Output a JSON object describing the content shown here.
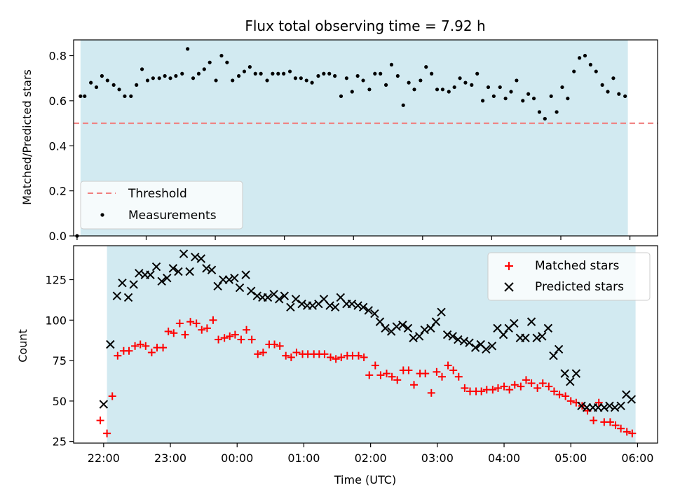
{
  "figure": {
    "title": "Flux total observing time = 7.92 h"
  },
  "chart_data": [
    {
      "type": "scatter",
      "ylabel": "Matched/Predicted stars",
      "xlim": [
        -0.05,
        8.4
      ],
      "ylim": [
        0.0,
        0.87
      ],
      "yticks": [
        0.0,
        0.2,
        0.4,
        0.6,
        0.8
      ],
      "ytick_labels": [
        "0.0",
        "0.2",
        "0.4",
        "0.6",
        "0.8"
      ],
      "xticks": [
        0,
        1,
        2,
        3,
        4,
        5,
        6,
        7,
        8
      ],
      "grid": false,
      "legend_position": "lower-left",
      "observing_window": [
        0.05,
        7.97
      ],
      "threshold": {
        "name": "Threshold",
        "value": 0.5,
        "color": "#f08080",
        "style": "dashed"
      },
      "series": [
        {
          "name": "Measurements",
          "marker": "dot",
          "color": "#000000",
          "x": [
            0.0,
            0.05,
            0.11,
            0.2,
            0.28,
            0.36,
            0.44,
            0.53,
            0.61,
            0.69,
            0.78,
            0.86,
            0.94,
            1.02,
            1.1,
            1.19,
            1.27,
            1.35,
            1.43,
            1.52,
            1.6,
            1.68,
            1.76,
            1.84,
            1.92,
            2.01,
            2.09,
            2.17,
            2.25,
            2.34,
            2.42,
            2.5,
            2.58,
            2.66,
            2.75,
            2.83,
            2.91,
            2.99,
            3.08,
            3.16,
            3.24,
            3.32,
            3.4,
            3.49,
            3.57,
            3.65,
            3.73,
            3.82,
            3.9,
            3.98,
            4.06,
            4.14,
            4.23,
            4.31,
            4.39,
            4.47,
            4.55,
            4.64,
            4.72,
            4.8,
            4.88,
            4.97,
            5.05,
            5.13,
            5.21,
            5.29,
            5.38,
            5.46,
            5.54,
            5.62,
            5.71,
            5.79,
            5.87,
            5.95,
            6.03,
            6.12,
            6.2,
            6.28,
            6.36,
            6.45,
            6.53,
            6.61,
            6.69,
            6.77,
            6.86,
            6.94,
            7.02,
            7.1,
            7.19,
            7.27,
            7.35,
            7.43,
            7.51,
            7.6,
            7.68,
            7.76,
            7.84,
            7.93
          ],
          "y": [
            0.0,
            0.62,
            0.62,
            0.68,
            0.66,
            0.71,
            0.69,
            0.67,
            0.65,
            0.62,
            0.62,
            0.67,
            0.74,
            0.69,
            0.7,
            0.7,
            0.71,
            0.7,
            0.71,
            0.72,
            0.83,
            0.7,
            0.72,
            0.74,
            0.77,
            0.69,
            0.8,
            0.77,
            0.69,
            0.71,
            0.73,
            0.75,
            0.72,
            0.72,
            0.69,
            0.72,
            0.72,
            0.72,
            0.73,
            0.7,
            0.7,
            0.69,
            0.68,
            0.71,
            0.72,
            0.72,
            0.71,
            0.62,
            0.7,
            0.64,
            0.71,
            0.69,
            0.65,
            0.72,
            0.72,
            0.67,
            0.76,
            0.71,
            0.58,
            0.68,
            0.65,
            0.69,
            0.75,
            0.72,
            0.65,
            0.65,
            0.64,
            0.66,
            0.7,
            0.68,
            0.67,
            0.72,
            0.6,
            0.66,
            0.62,
            0.66,
            0.61,
            0.64,
            0.69,
            0.6,
            0.63,
            0.61,
            0.55,
            0.52,
            0.62,
            0.55,
            0.66,
            0.61,
            0.73,
            0.79,
            0.8,
            0.76,
            0.73,
            0.67,
            0.64,
            0.7,
            0.63,
            0.62
          ]
        }
      ]
    },
    {
      "type": "scatter",
      "xlabel": "Time (UTC)",
      "ylabel": "Count",
      "xlim": [
        -0.45,
        8.3
      ],
      "ylim": [
        24,
        146
      ],
      "yticks": [
        25,
        50,
        75,
        100,
        125
      ],
      "ytick_labels": [
        "25",
        "50",
        "75",
        "100",
        "125"
      ],
      "xticks": [
        0,
        1,
        2,
        3,
        4,
        5,
        6,
        7,
        8
      ],
      "xtick_labels": [
        "22:00",
        "23:00",
        "00:00",
        "01:00",
        "02:00",
        "03:00",
        "04:00",
        "05:00",
        "06:00"
      ],
      "grid": false,
      "legend_position": "upper-right",
      "observing_window": [
        0.05,
        7.97
      ],
      "series": [
        {
          "name": "Matched stars",
          "marker": "plus",
          "color": "#ff0000",
          "x": [
            -0.05,
            0.05,
            0.13,
            0.21,
            0.3,
            0.38,
            0.47,
            0.55,
            0.63,
            0.72,
            0.8,
            0.89,
            0.97,
            1.05,
            1.14,
            1.22,
            1.3,
            1.39,
            1.47,
            1.55,
            1.64,
            1.72,
            1.81,
            1.89,
            1.97,
            2.06,
            2.14,
            2.22,
            2.31,
            2.39,
            2.48,
            2.56,
            2.64,
            2.73,
            2.81,
            2.89,
            2.98,
            3.06,
            3.15,
            3.23,
            3.31,
            3.4,
            3.48,
            3.56,
            3.65,
            3.73,
            3.82,
            3.9,
            3.98,
            4.07,
            4.15,
            4.24,
            4.32,
            4.4,
            4.49,
            4.57,
            4.65,
            4.74,
            4.82,
            4.91,
            4.99,
            5.07,
            5.16,
            5.24,
            5.32,
            5.41,
            5.49,
            5.58,
            5.66,
            5.74,
            5.83,
            5.91,
            6.0,
            6.08,
            6.16,
            6.25,
            6.33,
            6.41,
            6.5,
            6.58,
            6.67,
            6.75,
            6.83,
            6.92,
            7.0,
            7.08,
            7.17,
            7.25,
            7.34,
            7.42,
            7.5,
            7.59,
            7.67,
            7.75,
            7.84,
            7.92
          ],
          "y": [
            38,
            30,
            53,
            78,
            81,
            81,
            84,
            85,
            84,
            80,
            83,
            83,
            93,
            92,
            98,
            91,
            99,
            98,
            94,
            95,
            100,
            88,
            89,
            90,
            91,
            88,
            94,
            88,
            79,
            80,
            85,
            85,
            84,
            78,
            77,
            80,
            79,
            79,
            79,
            79,
            79,
            77,
            76,
            77,
            78,
            78,
            78,
            77,
            66,
            72,
            66,
            67,
            65,
            63,
            69,
            69,
            60,
            67,
            67,
            55,
            68,
            65,
            72,
            69,
            65,
            58,
            56,
            56,
            56,
            57,
            57,
            58,
            59,
            57,
            60,
            59,
            63,
            61,
            58,
            61,
            59,
            56,
            54,
            53,
            50,
            49,
            47,
            44,
            38,
            49,
            37,
            37,
            35,
            33,
            31,
            30
          ]
        },
        {
          "name": "Predicted stars",
          "marker": "x",
          "color": "#000000",
          "x": [
            0.0,
            0.1,
            0.2,
            0.28,
            0.37,
            0.45,
            0.53,
            0.62,
            0.7,
            0.79,
            0.87,
            0.95,
            1.04,
            1.12,
            1.2,
            1.29,
            1.37,
            1.46,
            1.54,
            1.62,
            1.71,
            1.79,
            1.88,
            1.96,
            2.04,
            2.13,
            2.21,
            2.3,
            2.38,
            2.46,
            2.55,
            2.63,
            2.71,
            2.8,
            2.88,
            2.97,
            3.05,
            3.13,
            3.22,
            3.3,
            3.39,
            3.47,
            3.55,
            3.64,
            3.72,
            3.81,
            3.89,
            3.97,
            4.06,
            4.14,
            4.22,
            4.31,
            4.39,
            4.48,
            4.56,
            4.64,
            4.73,
            4.81,
            4.9,
            4.98,
            5.06,
            5.15,
            5.23,
            5.31,
            5.4,
            5.48,
            5.57,
            5.65,
            5.73,
            5.82,
            5.9,
            5.99,
            6.07,
            6.15,
            6.24,
            6.32,
            6.41,
            6.49,
            6.57,
            6.66,
            6.74,
            6.82,
            6.91,
            6.99,
            7.08,
            7.16,
            7.24,
            7.33,
            7.41,
            7.5,
            7.58,
            7.66,
            7.75,
            7.83,
            7.91
          ],
          "y": [
            48,
            85,
            115,
            123,
            114,
            122,
            129,
            128,
            128,
            133,
            124,
            126,
            132,
            130,
            141,
            130,
            139,
            138,
            132,
            131,
            121,
            125,
            125,
            126,
            120,
            128,
            118,
            115,
            114,
            114,
            116,
            113,
            115,
            108,
            113,
            110,
            109,
            109,
            110,
            113,
            109,
            108,
            114,
            110,
            110,
            109,
            108,
            106,
            104,
            99,
            95,
            93,
            96,
            97,
            95,
            89,
            90,
            94,
            95,
            99,
            105,
            91,
            90,
            88,
            87,
            86,
            83,
            85,
            82,
            84,
            95,
            91,
            95,
            98,
            89,
            89,
            99,
            89,
            90,
            95,
            78,
            82,
            67,
            62,
            67,
            47,
            46,
            46,
            46,
            46,
            47,
            46,
            47,
            54,
            51
          ]
        }
      ]
    }
  ]
}
